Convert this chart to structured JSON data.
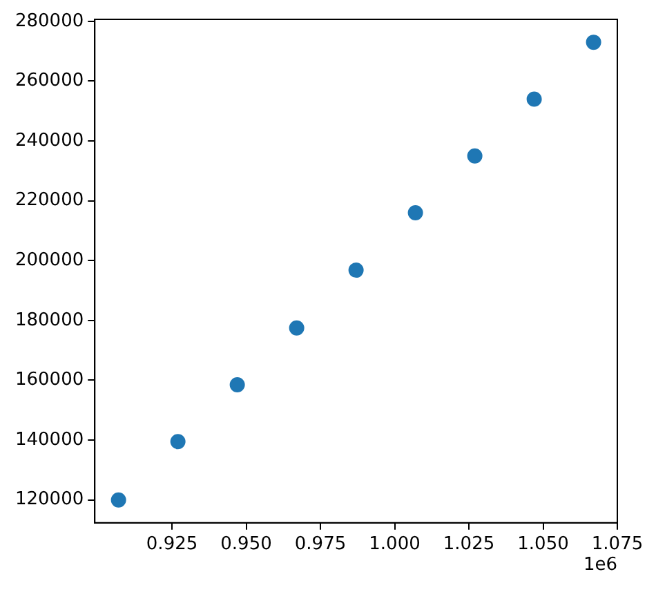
{
  "chart_data": {
    "type": "scatter",
    "x": [
      0.907,
      0.927,
      0.947,
      0.967,
      0.987,
      1.007,
      1.027,
      1.047,
      1.067
    ],
    "series": [
      {
        "color": "#1f77b4",
        "values": [
          120000,
          139500,
          158500,
          177500,
          196800,
          216000,
          235000,
          254000,
          273000
        ]
      }
    ],
    "xlim": [
      0.899,
      1.075
    ],
    "xticks": [
      0.925,
      {
        "value": 0.95,
        "label": "0.950"
      },
      0.975,
      {
        "value": 1,
        "label": "1.000"
      },
      1.025,
      {
        "value": 1.05,
        "label": "1.050"
      },
      1.075
    ],
    "ylim": [
      112350,
      280650
    ],
    "yticks": [
      120000,
      140000,
      160000,
      180000,
      200000,
      220000,
      240000,
      260000,
      280000
    ],
    "annotations": [
      "1e6"
    ],
    "grid": false,
    "legend": false,
    "marker": "circle"
  }
}
